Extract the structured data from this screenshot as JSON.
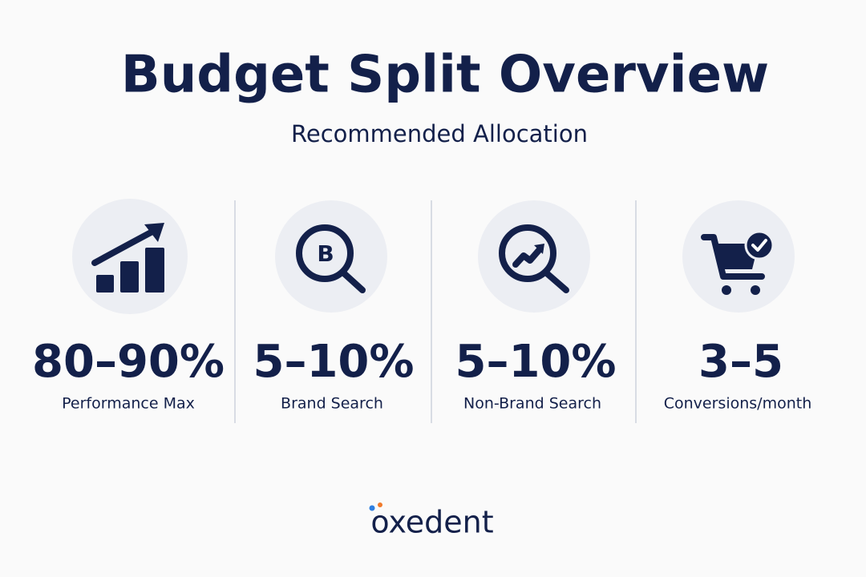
{
  "header": {
    "title": "Budget Split Overview",
    "subtitle": "Recommended Allocation"
  },
  "stats": [
    {
      "value": "80–90%",
      "label": "Performance Max"
    },
    {
      "value": "5–10%",
      "label": "Brand Search"
    },
    {
      "value": "5–10%",
      "label": "Non-Brand Search"
    },
    {
      "value": "3–5",
      "label": "Conversions/month"
    }
  ],
  "footer": {
    "brand": "oxedent"
  }
}
